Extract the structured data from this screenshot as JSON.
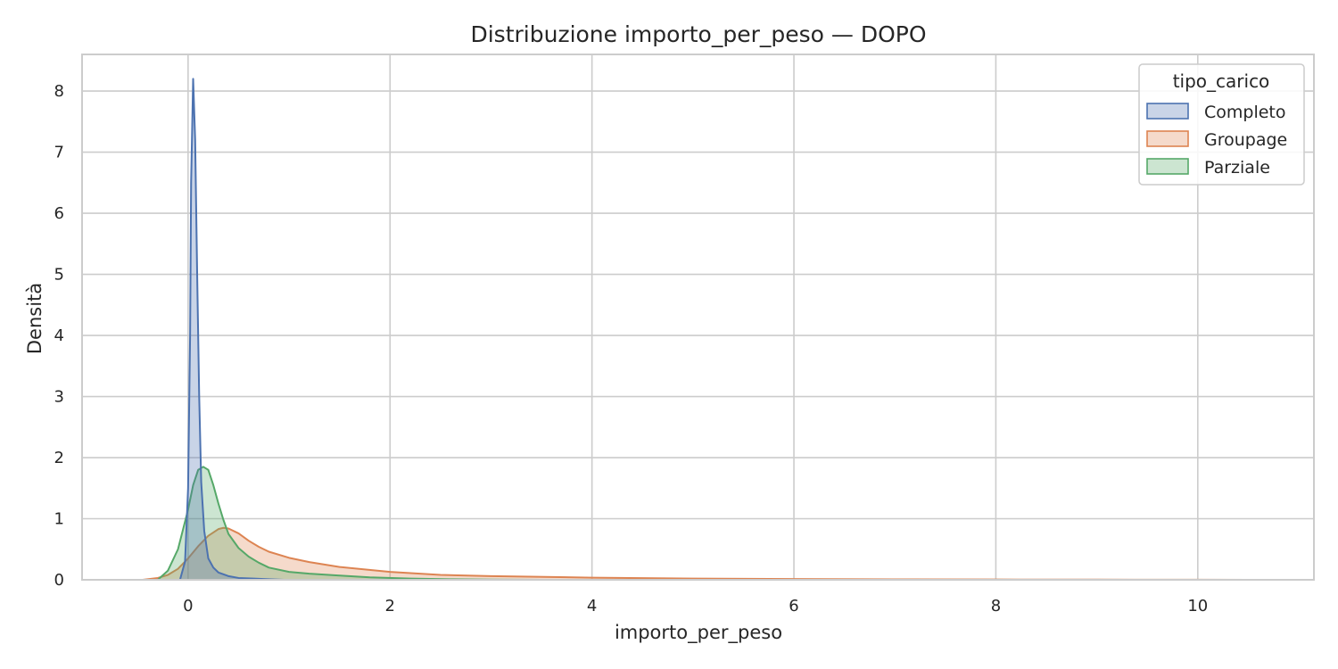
{
  "chart_data": {
    "type": "area",
    "title": "Distribuzione importo_per_peso — DOPO",
    "xlabel": "importo_per_peso",
    "ylabel": "Densità",
    "xlim": [
      -1.05,
      11.15
    ],
    "ylim": [
      0,
      8.6
    ],
    "x_ticks": [
      0,
      2,
      4,
      6,
      8,
      10
    ],
    "x_tick_labels": [
      "0",
      "2",
      "4",
      "6",
      "8",
      "10"
    ],
    "y_ticks": [
      0,
      1,
      2,
      3,
      4,
      5,
      6,
      7,
      8
    ],
    "y_tick_labels": [
      "0",
      "1",
      "2",
      "3",
      "4",
      "5",
      "6",
      "7",
      "8"
    ],
    "grid": true,
    "legend": {
      "title": "tipo_carico",
      "placement": "top-right"
    },
    "series": [
      {
        "name": "Completo",
        "color": "#4c72b0",
        "x": [
          -0.08,
          -0.03,
          0.0,
          0.02,
          0.03,
          0.05,
          0.07,
          0.09,
          0.11,
          0.13,
          0.16,
          0.2,
          0.25,
          0.3,
          0.4,
          0.5,
          0.65,
          0.8,
          0.95
        ],
        "y": [
          0,
          0.3,
          1.5,
          4.0,
          6.5,
          8.2,
          7.2,
          5.0,
          3.0,
          1.6,
          0.8,
          0.35,
          0.2,
          0.12,
          0.06,
          0.03,
          0.02,
          0.01,
          0
        ]
      },
      {
        "name": "Groupage",
        "color": "#dd8452",
        "x": [
          -0.45,
          -0.3,
          -0.2,
          -0.1,
          0.0,
          0.1,
          0.2,
          0.3,
          0.35,
          0.4,
          0.5,
          0.6,
          0.7,
          0.8,
          1.0,
          1.2,
          1.5,
          2.0,
          2.5,
          3.0,
          4.0,
          5.0,
          6.0,
          7.0,
          8.0,
          9.0,
          10.0,
          10.8
        ],
        "y": [
          0,
          0.03,
          0.08,
          0.18,
          0.35,
          0.55,
          0.72,
          0.83,
          0.85,
          0.84,
          0.76,
          0.64,
          0.54,
          0.46,
          0.36,
          0.29,
          0.21,
          0.13,
          0.08,
          0.06,
          0.035,
          0.02,
          0.012,
          0.008,
          0.005,
          0.003,
          0.002,
          0
        ]
      },
      {
        "name": "Parziale",
        "color": "#55a868",
        "x": [
          -0.3,
          -0.2,
          -0.1,
          0.0,
          0.05,
          0.1,
          0.15,
          0.2,
          0.25,
          0.3,
          0.35,
          0.4,
          0.5,
          0.6,
          0.7,
          0.8,
          1.0,
          1.2,
          1.5,
          1.8,
          2.2,
          2.6,
          3.0,
          3.5
        ],
        "y": [
          0,
          0.15,
          0.5,
          1.15,
          1.55,
          1.8,
          1.85,
          1.8,
          1.55,
          1.25,
          0.98,
          0.75,
          0.52,
          0.38,
          0.28,
          0.2,
          0.13,
          0.1,
          0.07,
          0.04,
          0.02,
          0.01,
          0.004,
          0
        ]
      }
    ]
  }
}
